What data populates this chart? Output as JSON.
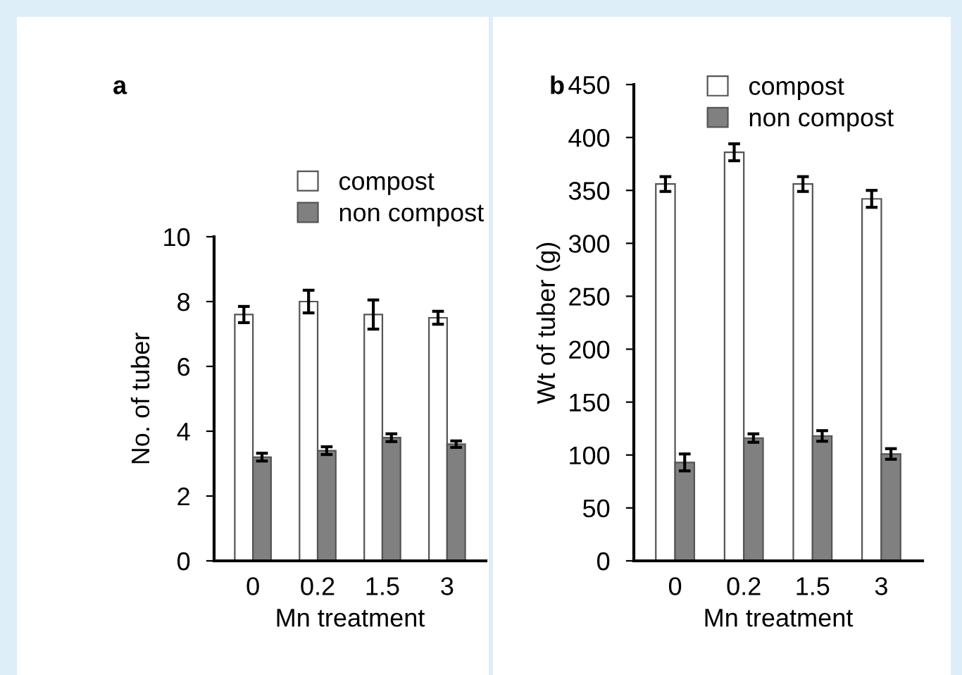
{
  "chart_data": [
    {
      "type": "bar",
      "annotations": [
        "a"
      ],
      "xlabel": "Mn treatment",
      "ylabel": "No. of tuber",
      "categories": [
        "0",
        "0.2",
        "1.5",
        "3"
      ],
      "ylim": [
        0,
        10
      ],
      "yticks": [
        0,
        2,
        4,
        6,
        8,
        10
      ],
      "grid": false,
      "legend": "top",
      "series": [
        {
          "name": "compost",
          "color": "#ffffff",
          "values": [
            7.6,
            8.0,
            7.6,
            7.5
          ],
          "errors": [
            0.25,
            0.35,
            0.45,
            0.2
          ]
        },
        {
          "name": "non compost",
          "color": "#808080",
          "values": [
            3.2,
            3.4,
            3.8,
            3.6
          ],
          "errors": [
            0.12,
            0.12,
            0.12,
            0.1
          ]
        }
      ]
    },
    {
      "type": "bar",
      "annotations": [
        "b"
      ],
      "xlabel": "Mn treatment",
      "ylabel": "Wt of tuber (g)",
      "categories": [
        "0",
        "0.2",
        "1.5",
        "3"
      ],
      "ylim": [
        0,
        450
      ],
      "yticks": [
        0,
        50,
        100,
        150,
        200,
        250,
        300,
        350,
        400,
        450
      ],
      "grid": false,
      "legend": "top",
      "series": [
        {
          "name": "compost",
          "color": "#ffffff",
          "values": [
            356,
            386,
            356,
            342
          ],
          "errors": [
            7,
            8,
            7,
            8
          ]
        },
        {
          "name": "non compost",
          "color": "#808080",
          "values": [
            93,
            116,
            118,
            101
          ],
          "errors": [
            8,
            4,
            5,
            5
          ]
        }
      ]
    }
  ]
}
